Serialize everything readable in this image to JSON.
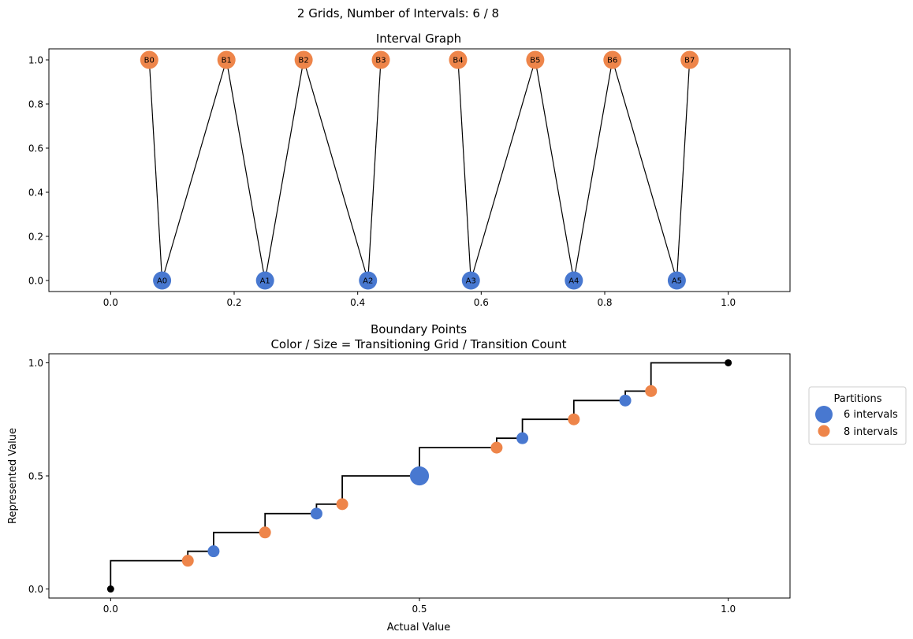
{
  "figure": {
    "suptitle": "2 Grids, Number of Intervals: 6 / 8"
  },
  "colors": {
    "grid_a": "#4878d0",
    "grid_b": "#ee854a",
    "edge": "#000000",
    "endpoint": "#000000"
  },
  "chart_data": [
    {
      "type": "network",
      "title": "Interval Graph",
      "xlabel": "",
      "ylabel": "",
      "xlim": [
        -0.1,
        1.1
      ],
      "ylim": [
        -0.05,
        1.05
      ],
      "xticks": [
        0.0,
        0.2,
        0.4,
        0.6,
        0.8,
        1.0
      ],
      "xtick_labels": [
        "0.0",
        "0.2",
        "0.4",
        "0.6",
        "0.8",
        "1.0"
      ],
      "yticks": [
        0.0,
        0.2,
        0.4,
        0.6,
        0.8,
        1.0
      ],
      "ytick_labels": [
        "0.0",
        "0.2",
        "0.4",
        "0.6",
        "0.8",
        "1.0"
      ],
      "grid": false,
      "nodes": [
        {
          "id": "A0",
          "x": 0.0833,
          "y": 0,
          "group": "A"
        },
        {
          "id": "A1",
          "x": 0.25,
          "y": 0,
          "group": "A"
        },
        {
          "id": "A2",
          "x": 0.4167,
          "y": 0,
          "group": "A"
        },
        {
          "id": "A3",
          "x": 0.5833,
          "y": 0,
          "group": "A"
        },
        {
          "id": "A4",
          "x": 0.75,
          "y": 0,
          "group": "A"
        },
        {
          "id": "A5",
          "x": 0.9167,
          "y": 0,
          "group": "A"
        },
        {
          "id": "B0",
          "x": 0.0625,
          "y": 1,
          "group": "B"
        },
        {
          "id": "B1",
          "x": 0.1875,
          "y": 1,
          "group": "B"
        },
        {
          "id": "B2",
          "x": 0.3125,
          "y": 1,
          "group": "B"
        },
        {
          "id": "B3",
          "x": 0.4375,
          "y": 1,
          "group": "B"
        },
        {
          "id": "B4",
          "x": 0.5625,
          "y": 1,
          "group": "B"
        },
        {
          "id": "B5",
          "x": 0.6875,
          "y": 1,
          "group": "B"
        },
        {
          "id": "B6",
          "x": 0.8125,
          "y": 1,
          "group": "B"
        },
        {
          "id": "B7",
          "x": 0.9375,
          "y": 1,
          "group": "B"
        }
      ],
      "edges": [
        [
          "B0",
          "A0"
        ],
        [
          "A0",
          "B1"
        ],
        [
          "B1",
          "A1"
        ],
        [
          "A1",
          "B2"
        ],
        [
          "B2",
          "A2"
        ],
        [
          "A2",
          "B3"
        ],
        [
          "B4",
          "A3"
        ],
        [
          "A3",
          "B5"
        ],
        [
          "B5",
          "A4"
        ],
        [
          "A4",
          "B6"
        ],
        [
          "B6",
          "A5"
        ],
        [
          "A5",
          "B7"
        ]
      ]
    },
    {
      "type": "scatter",
      "title": "Boundary Points",
      "subtitle": "Color / Size = Transitioning Grid / Transition Count",
      "xlabel": "Actual Value",
      "ylabel": "Represented Value",
      "xlim": [
        -0.1,
        1.1
      ],
      "ylim": [
        -0.04,
        1.04
      ],
      "xticks": [
        0.0,
        0.5,
        1.0
      ],
      "xtick_labels": [
        "0.0",
        "0.5",
        "1.0"
      ],
      "yticks": [
        0.0,
        0.5,
        1.0
      ],
      "ytick_labels": [
        "0.0",
        "0.5",
        "1.0"
      ],
      "grid": false,
      "legend": {
        "title": "Partitions",
        "placement": "outside-right",
        "entries": [
          {
            "label": "6 intervals",
            "series": "A"
          },
          {
            "label": "8 intervals",
            "series": "B"
          }
        ]
      },
      "endpoints": [
        [
          0,
          0
        ],
        [
          1,
          1
        ]
      ],
      "step_line": [
        [
          0,
          0
        ],
        [
          0,
          0.125
        ],
        [
          0.125,
          0.125
        ],
        [
          0.125,
          0.1667
        ],
        [
          0.1667,
          0.1667
        ],
        [
          0.1667,
          0.25
        ],
        [
          0.25,
          0.25
        ],
        [
          0.25,
          0.3333
        ],
        [
          0.3333,
          0.3333
        ],
        [
          0.3333,
          0.375
        ],
        [
          0.375,
          0.375
        ],
        [
          0.375,
          0.5
        ],
        [
          0.5,
          0.5
        ],
        [
          0.5,
          0.625
        ],
        [
          0.625,
          0.625
        ],
        [
          0.625,
          0.6667
        ],
        [
          0.6667,
          0.6667
        ],
        [
          0.6667,
          0.75
        ],
        [
          0.75,
          0.75
        ],
        [
          0.75,
          0.8333
        ],
        [
          0.8333,
          0.8333
        ],
        [
          0.8333,
          0.875
        ],
        [
          0.875,
          0.875
        ],
        [
          0.875,
          1.0
        ],
        [
          1.0,
          1.0
        ]
      ],
      "series": [
        {
          "id": "A",
          "points": [
            {
              "x": 0.1667,
              "y": 0.1667,
              "count": 1
            },
            {
              "x": 0.3333,
              "y": 0.3333,
              "count": 1
            },
            {
              "x": 0.5,
              "y": 0.5,
              "count": 2
            },
            {
              "x": 0.6667,
              "y": 0.6667,
              "count": 1
            },
            {
              "x": 0.8333,
              "y": 0.8333,
              "count": 1
            }
          ]
        },
        {
          "id": "B",
          "points": [
            {
              "x": 0.125,
              "y": 0.125,
              "count": 1
            },
            {
              "x": 0.25,
              "y": 0.25,
              "count": 1
            },
            {
              "x": 0.375,
              "y": 0.375,
              "count": 1
            },
            {
              "x": 0.625,
              "y": 0.625,
              "count": 1
            },
            {
              "x": 0.75,
              "y": 0.75,
              "count": 1
            },
            {
              "x": 0.875,
              "y": 0.875,
              "count": 1
            }
          ]
        }
      ]
    }
  ]
}
